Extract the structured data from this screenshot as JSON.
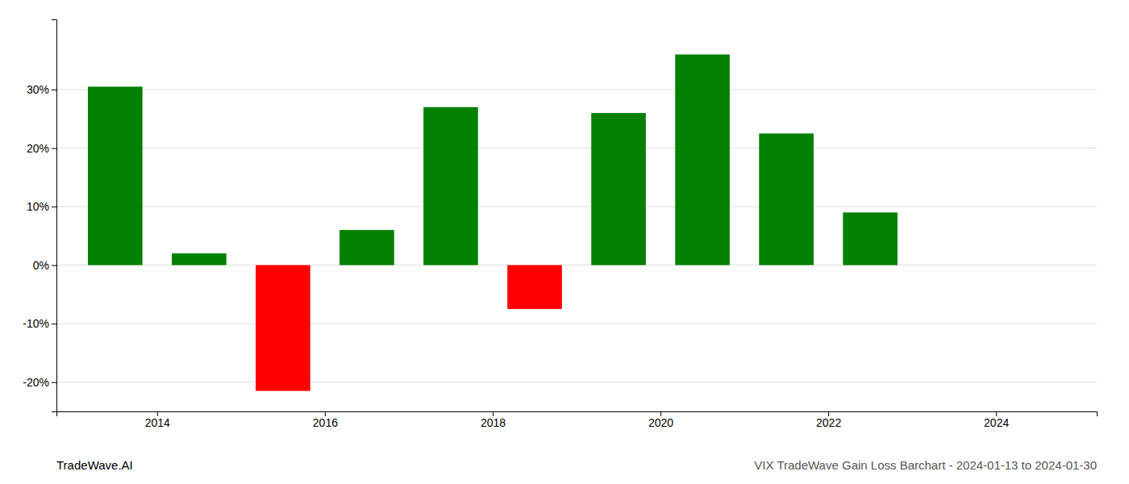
{
  "chart_data": {
    "type": "bar",
    "x": [
      2013.5,
      2014.5,
      2015.5,
      2016.5,
      2017.5,
      2018.5,
      2019.5,
      2020.5,
      2021.5,
      2022.5,
      2023.5
    ],
    "values": [
      30.5,
      2.0,
      -21.5,
      6.0,
      27.0,
      -7.5,
      26.0,
      36.0,
      22.5,
      9.0,
      0.0
    ],
    "colors": [
      "#008000",
      "#008000",
      "#ff0000",
      "#008000",
      "#008000",
      "#ff0000",
      "#008000",
      "#008000",
      "#008000",
      "#008000",
      "#008000"
    ],
    "xlim": [
      2012.8,
      2025.2
    ],
    "xticks": [
      2014,
      2016,
      2018,
      2020,
      2022,
      2024
    ],
    "ylim": [
      -25,
      42
    ],
    "yticks": [
      {
        "value": -20,
        "label": "-20%"
      },
      {
        "value": -10,
        "label": "-10%"
      },
      {
        "value": 0,
        "label": "0%"
      },
      {
        "value": 10,
        "label": "10%"
      },
      {
        "value": 20,
        "label": "20%"
      },
      {
        "value": 30,
        "label": "30%"
      }
    ],
    "grid": true,
    "annotations": [
      "TradeWave.AI",
      "VIX TradeWave Gain Loss Barchart - 2024-01-13 to 2024-01-30"
    ]
  }
}
